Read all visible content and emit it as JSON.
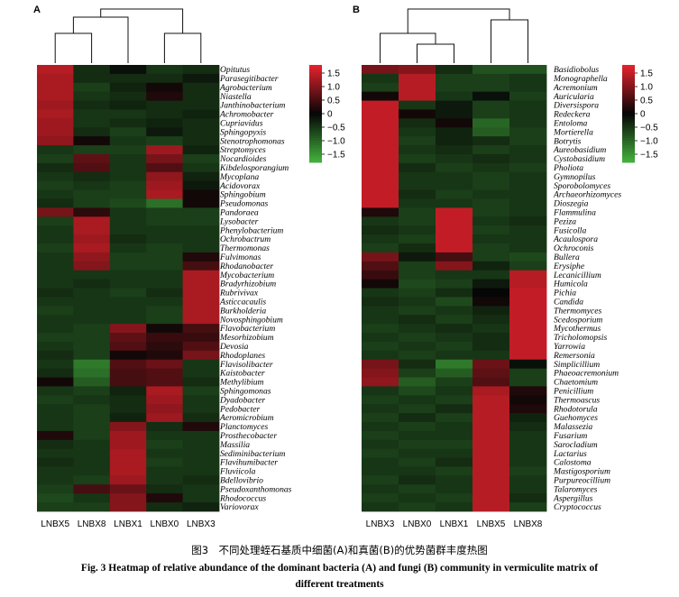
{
  "caption": {
    "cn": "图3　不同处理蛭石基质中细菌(A)和真菌(B)的优势菌群丰度热图",
    "en_line1": "Fig. 3    Heatmap of relative abundance of the dominant bacteria (A) and fungi (B) community in vermiculite matrix of",
    "en_line2": "different treatments"
  },
  "colors": {
    "low": "#44b23e",
    "mid": "#060606",
    "high": "#e8222c"
  },
  "chart_data": [
    {
      "type": "heatmap",
      "panel_label": "A",
      "columns": [
        "LNBX5",
        "LNBX8",
        "LNBX1",
        "LNBX0",
        "LNBX3"
      ],
      "rows": [
        "Opitutus",
        "Parasegitibacter",
        "Agrobacterium",
        "Niastella",
        "Janthinobacterium",
        "Achromobacter",
        "Cupriavidus",
        "Sphingopyxis",
        "Stenotrophomonas",
        "Streptomyces",
        "Nocardioides",
        "Kibdelosporangium",
        "Mycoplana",
        "Acidovorax",
        "Sphingobium",
        "Pseudomonas",
        "Pandoraea",
        "Lysobacter",
        "Phenylobacterium",
        "Ochrobactrum",
        "Thermomonas",
        "Fulvimonas",
        "Rhodanobacter",
        "Mycobacterium",
        "Bradyrhizobium",
        "Rubrivivax",
        "Asticcacaulis",
        "Burkholderia",
        "Novosphingobium",
        "Flavobacterium",
        "Mesorhizobium",
        "Devosia",
        "Rhodoplanes",
        "Flavisolibacter",
        "Kaistobacter",
        "Methylibium",
        "Sphingomonas",
        "Dyadobacter",
        "Pedobacter",
        "Aeromicrobium",
        "Planctomyces",
        "Prosthecobacter",
        "Massilia",
        "Sediminibacterium",
        "Flavihumibacter",
        "Fluviicola",
        "Bdellovibrio",
        "Pseudoxanthomonas",
        "Rhodococcus",
        "Variovorax"
      ],
      "values": [
        [
          1.4,
          -0.4,
          -0.1,
          -0.5,
          -0.4
        ],
        [
          1.3,
          -0.4,
          -0.4,
          -0.4,
          -0.2
        ],
        [
          1.3,
          -0.6,
          -0.3,
          0.1,
          -0.4
        ],
        [
          1.3,
          -0.5,
          -0.4,
          0.2,
          -0.4
        ],
        [
          1.2,
          -0.4,
          -0.3,
          -0.4,
          -0.4
        ],
        [
          1.3,
          -0.5,
          -0.5,
          -0.4,
          -0.3
        ],
        [
          1.2,
          -0.5,
          -0.4,
          -0.3,
          -0.4
        ],
        [
          1.2,
          -0.4,
          -0.6,
          -0.2,
          -0.4
        ],
        [
          1.1,
          0.1,
          -0.5,
          -0.6,
          -0.4
        ],
        [
          -0.5,
          -0.6,
          -0.6,
          1.2,
          -0.3
        ],
        [
          -0.6,
          0.7,
          -0.5,
          0.9,
          -0.6
        ],
        [
          -0.4,
          0.6,
          -0.5,
          0.6,
          -0.5
        ],
        [
          -0.5,
          -0.4,
          -0.5,
          1.1,
          -0.3
        ],
        [
          -0.6,
          -0.5,
          -0.6,
          1.2,
          -0.2
        ],
        [
          -0.5,
          -0.6,
          -0.6,
          1.3,
          0.1
        ],
        [
          -0.4,
          -0.6,
          -0.7,
          -1.1,
          0.1
        ],
        [
          0.9,
          0.3,
          -0.5,
          -0.6,
          -0.6
        ],
        [
          -0.6,
          1.3,
          -0.5,
          -0.6,
          -0.6
        ],
        [
          -0.5,
          1.3,
          -0.5,
          -0.5,
          -0.5
        ],
        [
          -0.5,
          1.2,
          -0.4,
          -0.5,
          -0.5
        ],
        [
          -0.6,
          1.3,
          -0.5,
          -0.6,
          -0.5
        ],
        [
          -0.5,
          1.1,
          -0.6,
          -0.6,
          0.2
        ],
        [
          -0.5,
          1.0,
          -0.6,
          -0.6,
          0.5
        ],
        [
          -0.5,
          -0.5,
          -0.5,
          -0.5,
          1.3
        ],
        [
          -0.5,
          -0.4,
          -0.5,
          -0.5,
          1.3
        ],
        [
          -0.4,
          -0.5,
          -0.6,
          -0.4,
          1.3
        ],
        [
          -0.5,
          -0.5,
          -0.5,
          -0.5,
          1.3
        ],
        [
          -0.6,
          -0.5,
          -0.5,
          -0.6,
          1.3
        ],
        [
          -0.5,
          -0.5,
          -0.5,
          -0.6,
          1.3
        ],
        [
          -0.5,
          -0.6,
          1.0,
          0.1,
          0.5
        ],
        [
          -0.6,
          -0.6,
          0.7,
          0.4,
          0.4
        ],
        [
          -0.5,
          -0.6,
          0.6,
          0.3,
          0.6
        ],
        [
          -0.4,
          -0.6,
          0.1,
          0.2,
          0.9
        ],
        [
          -0.5,
          -1.2,
          0.6,
          0.8,
          -0.5
        ],
        [
          -0.4,
          -1.1,
          0.5,
          0.6,
          -0.5
        ],
        [
          0.1,
          -0.9,
          0.5,
          0.6,
          -0.4
        ],
        [
          -0.5,
          -0.6,
          -0.3,
          1.3,
          -0.6
        ],
        [
          -0.6,
          -0.5,
          -0.4,
          1.2,
          -0.5
        ],
        [
          -0.5,
          -0.6,
          -0.4,
          1.1,
          -0.5
        ],
        [
          -0.5,
          -0.6,
          -0.3,
          1.2,
          -0.4
        ],
        [
          -0.5,
          -0.6,
          1.0,
          -0.4,
          0.2
        ],
        [
          0.2,
          -0.6,
          1.2,
          -0.5,
          -0.5
        ],
        [
          -0.4,
          -0.5,
          1.2,
          -0.6,
          -0.5
        ],
        [
          -0.5,
          -0.5,
          1.3,
          -0.5,
          -0.5
        ],
        [
          -0.4,
          -0.5,
          1.3,
          -0.6,
          -0.5
        ],
        [
          -0.5,
          -0.5,
          1.3,
          -0.5,
          -0.5
        ],
        [
          -0.5,
          -0.6,
          1.2,
          -0.5,
          -0.4
        ],
        [
          -0.6,
          0.5,
          0.8,
          -0.4,
          -0.5
        ],
        [
          -0.7,
          -0.5,
          1.0,
          0.2,
          -0.5
        ],
        [
          -0.6,
          -0.6,
          1.0,
          -0.4,
          -0.3
        ]
      ],
      "legend_ticks": [
        "1.5",
        "1.0",
        "0.5",
        "0",
        "−0.5",
        "−1.0",
        "−1.5"
      ],
      "vmin": -1.8,
      "vmax": 1.8
    },
    {
      "type": "heatmap",
      "panel_label": "B",
      "columns": [
        "LNBX3",
        "LNBX0",
        "LNBX1",
        "LNBX5",
        "LNBX8"
      ],
      "rows": [
        "Basidiobolus",
        "Monographella",
        "Acremonium",
        "Auricularia",
        "Diversispora",
        "Redeckera",
        "Entoloma",
        "Mortierella",
        "Botrytis",
        "Aureobasidium",
        "Cystobasidium",
        "Pholiota",
        "Gymnopilus",
        "Sporobolomyces",
        "Archaeorhizomyces",
        "Dioszegia",
        "Flammulina",
        "Peziza",
        "Fusicolla",
        "Acaulospora",
        "Ochroconis",
        "Bullera",
        "Erysiphe",
        "Lecanicillium",
        "Humicola",
        "Pichia",
        "Candida",
        "Thermomyces",
        "Scedosporium",
        "Mycothermus",
        "Tricholomopsis",
        "Yarrowia",
        "Remersonia",
        "Simplicillium",
        "Phaeoacremonium",
        "Chaetomium",
        "Penicillium",
        "Thermoascus",
        "Rhodotorula",
        "Guehomyces",
        "Malassezia",
        "Fusarium",
        "Sarocladium",
        "Lactarius",
        "Calostoma",
        "Mastigosporium",
        "Purpureocillium",
        "Talaromyces",
        "Aspergillus",
        "Cryptococcus"
      ],
      "values": [
        [
          0.9,
          1.0,
          -0.4,
          -0.8,
          -0.8
        ],
        [
          -0.5,
          1.4,
          -0.6,
          -0.6,
          -0.5
        ],
        [
          -0.6,
          1.4,
          -0.6,
          -0.6,
          -0.5
        ],
        [
          0.1,
          1.4,
          -0.5,
          -0.1,
          -0.6
        ],
        [
          1.5,
          -0.5,
          -0.2,
          -0.6,
          -0.5
        ],
        [
          1.5,
          0.1,
          -0.2,
          -0.6,
          -0.5
        ],
        [
          1.5,
          -0.4,
          0.1,
          -1.0,
          -0.5
        ],
        [
          1.5,
          -0.5,
          -0.3,
          -0.9,
          -0.6
        ],
        [
          1.5,
          -0.6,
          -0.3,
          -0.4,
          -0.6
        ],
        [
          1.5,
          -0.5,
          -0.4,
          -0.6,
          -0.5
        ],
        [
          1.5,
          -0.6,
          -0.5,
          -0.4,
          -0.5
        ],
        [
          1.5,
          -0.4,
          -0.6,
          -0.5,
          -0.6
        ],
        [
          1.5,
          -0.5,
          -0.5,
          -0.6,
          -0.5
        ],
        [
          1.5,
          -0.5,
          -0.5,
          -0.6,
          -0.5
        ],
        [
          1.5,
          -0.4,
          -0.6,
          -0.5,
          -0.5
        ],
        [
          1.5,
          -0.5,
          -0.5,
          -0.6,
          -0.5
        ],
        [
          0.2,
          -0.6,
          1.5,
          -0.6,
          -0.5
        ],
        [
          -0.5,
          -0.6,
          1.5,
          -0.5,
          -0.4
        ],
        [
          -0.4,
          -0.5,
          1.5,
          -0.6,
          -0.5
        ],
        [
          -0.5,
          -0.6,
          1.5,
          -0.5,
          -0.5
        ],
        [
          -0.6,
          -0.4,
          1.5,
          -0.6,
          -0.5
        ],
        [
          0.9,
          -0.2,
          0.5,
          -0.6,
          -0.7
        ],
        [
          0.6,
          -0.6,
          1.0,
          -0.3,
          -0.6
        ],
        [
          0.4,
          -0.6,
          -0.5,
          -0.5,
          1.4
        ],
        [
          0.1,
          -0.7,
          -0.6,
          -0.2,
          1.4
        ],
        [
          -0.5,
          -0.6,
          -0.4,
          0.0,
          1.5
        ],
        [
          -0.4,
          -0.5,
          -0.7,
          0.1,
          1.5
        ],
        [
          -0.5,
          -0.6,
          -0.5,
          -0.3,
          1.5
        ],
        [
          -0.5,
          -0.4,
          -0.6,
          -0.4,
          1.5
        ],
        [
          -0.6,
          -0.5,
          -0.4,
          -0.5,
          1.5
        ],
        [
          -0.5,
          -0.6,
          -0.5,
          -0.4,
          1.5
        ],
        [
          -0.6,
          -0.5,
          -0.6,
          -0.4,
          1.5
        ],
        [
          -0.5,
          -0.6,
          -0.5,
          -0.5,
          1.5
        ],
        [
          0.9,
          -0.4,
          -1.2,
          0.8,
          -0.1
        ],
        [
          1.0,
          -0.6,
          -0.9,
          0.7,
          -0.6
        ],
        [
          1.1,
          -0.9,
          -0.6,
          0.6,
          -0.6
        ],
        [
          -0.5,
          -0.7,
          -0.5,
          1.3,
          0.2
        ],
        [
          -0.6,
          -0.5,
          -0.6,
          1.4,
          0.1
        ],
        [
          -0.5,
          -0.6,
          -0.4,
          1.4,
          0.2
        ],
        [
          -0.6,
          -0.4,
          -0.6,
          1.4,
          -0.3
        ],
        [
          -0.5,
          -0.6,
          -0.5,
          1.4,
          -0.4
        ],
        [
          -0.6,
          -0.5,
          -0.5,
          1.4,
          -0.5
        ],
        [
          -0.5,
          -0.6,
          -0.6,
          1.4,
          -0.5
        ],
        [
          -0.6,
          -0.5,
          -0.5,
          1.4,
          -0.5
        ],
        [
          -0.5,
          -0.6,
          -0.4,
          1.4,
          -0.5
        ],
        [
          -0.5,
          -0.5,
          -0.6,
          1.4,
          -0.6
        ],
        [
          -0.6,
          -0.4,
          -0.5,
          1.4,
          -0.5
        ],
        [
          -0.5,
          -0.6,
          -0.5,
          1.4,
          -0.5
        ],
        [
          -0.6,
          -0.5,
          -0.6,
          1.4,
          -0.4
        ],
        [
          -0.5,
          -0.6,
          -0.5,
          1.4,
          -0.6
        ]
      ],
      "legend_ticks": [
        "1.5",
        "1.0",
        "0.5",
        "0",
        "−0.5",
        "−1.0",
        "−1.5"
      ],
      "vmin": -1.8,
      "vmax": 1.8
    }
  ]
}
